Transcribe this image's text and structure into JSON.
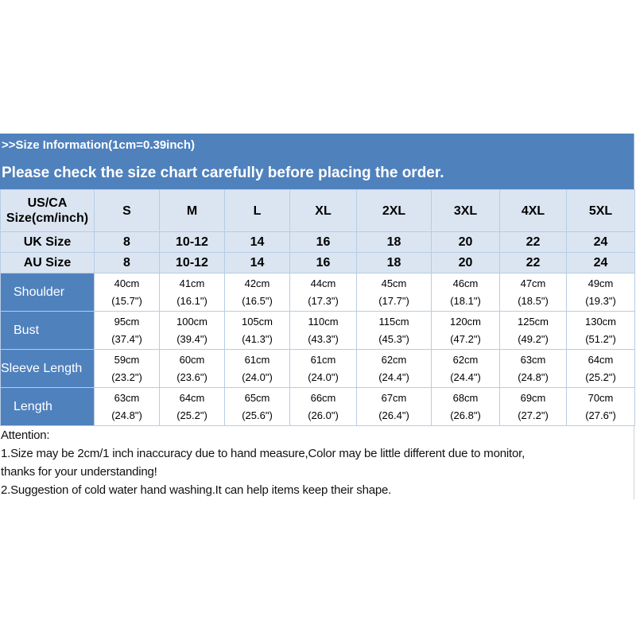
{
  "header": {
    "line1": ">>Size Information(1cm=0.39inch)",
    "line2": "Please check the size chart carefully before placing the order."
  },
  "table": {
    "us_label_top": "US/CA",
    "us_label_bottom": "Size(cm/inch)",
    "sizes": [
      "S",
      "M",
      "L",
      "XL",
      "2XL",
      "3XL",
      "4XL",
      "5XL"
    ],
    "uk_label": "UK Size",
    "uk": [
      "8",
      "10-12",
      "14",
      "16",
      "18",
      "20",
      "22",
      "24"
    ],
    "au_label": "AU Size",
    "au": [
      "8",
      "10-12",
      "14",
      "16",
      "18",
      "20",
      "22",
      "24"
    ],
    "rows": [
      {
        "label": "Shoulder",
        "cm": [
          "40cm",
          "41cm",
          "42cm",
          "44cm",
          "45cm",
          "46cm",
          "47cm",
          "49cm"
        ],
        "inch": [
          "(15.7\")",
          "(16.1\")",
          "(16.5\")",
          "(17.3\")",
          "(17.7\")",
          "(18.1\")",
          "(18.5\")",
          "(19.3\")"
        ]
      },
      {
        "label": "Bust",
        "cm": [
          "95cm",
          "100cm",
          "105cm",
          "110cm",
          "115cm",
          "120cm",
          "125cm",
          "130cm"
        ],
        "inch": [
          "(37.4\")",
          "(39.4\")",
          "(41.3\")",
          "(43.3\")",
          "(45.3\")",
          "(47.2\")",
          "(49.2\")",
          "(51.2\")"
        ]
      },
      {
        "label": "Sleeve Length",
        "cm": [
          "59cm",
          "60cm",
          "61cm",
          "61cm",
          "62cm",
          "62cm",
          "63cm",
          "64cm"
        ],
        "inch": [
          "(23.2\")",
          "(23.6\")",
          "(24.0\")",
          "(24.0\")",
          "(24.4\")",
          "(24.4\")",
          "(24.8\")",
          "(25.2\")"
        ]
      },
      {
        "label": "Length",
        "cm": [
          "63cm",
          "64cm",
          "65cm",
          "66cm",
          "67cm",
          "68cm",
          "69cm",
          "70cm"
        ],
        "inch": [
          "(24.8\")",
          "(25.2\")",
          "(25.6\")",
          "(26.0\")",
          "(26.4\")",
          "(26.8\")",
          "(27.2\")",
          "(27.6\")"
        ]
      }
    ]
  },
  "notes": {
    "title": "Attention:",
    "line1": "1.Size may be 2cm/1 inch inaccuracy due to hand measure,Color may be little different due to monitor,",
    "line2": "thanks for your understanding!",
    "line3": "2.Suggestion of cold water hand washing.It can help items keep their shape."
  },
  "colors": {
    "header_blue": "#4f81bd",
    "light_row": "#dbe5f1",
    "grid_line": "#b8cce4"
  }
}
